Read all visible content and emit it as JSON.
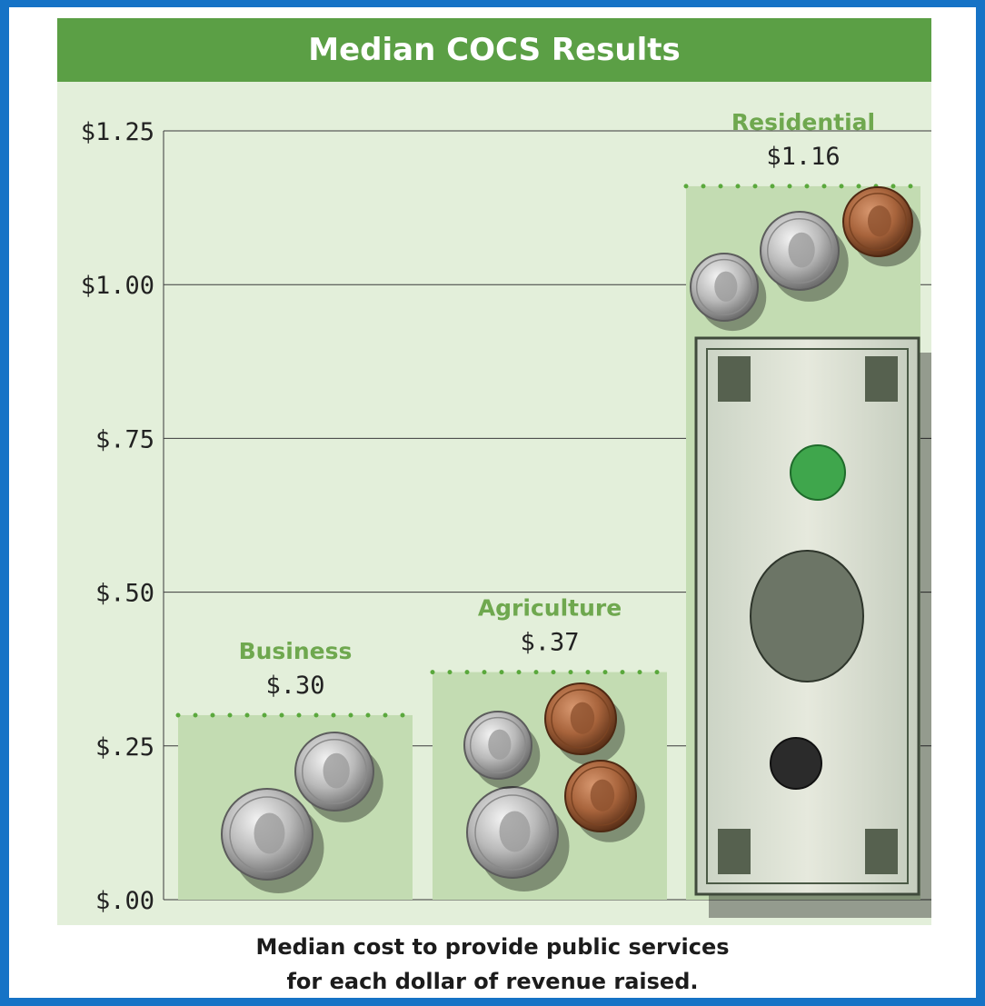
{
  "chart_data": {
    "type": "bar",
    "title": "Median COCS Results",
    "categories": [
      "Business",
      "Agriculture",
      "Residential"
    ],
    "values": [
      0.3,
      0.37,
      1.16
    ],
    "value_labels": [
      "$.30",
      "$.37",
      "$1.16"
    ],
    "ylim": [
      0,
      1.25
    ],
    "yticks": [
      0,
      0.25,
      0.5,
      0.75,
      1.0,
      1.25
    ],
    "ytick_labels": [
      "$.00",
      "$.25",
      "$.50",
      "$.75",
      "$1.00",
      "$1.25"
    ],
    "grid": true,
    "xlabel": "",
    "ylabel": ""
  },
  "caption": {
    "line1": "Median cost to provide public services",
    "line2": "for each dollar of revenue raised."
  },
  "colors": {
    "frame": "#1673c6",
    "title_bar": "#5b9f45",
    "title_text": "#ffffff",
    "plot_bg": "#e3efda",
    "bar_fill": "#c3dcb2",
    "category_text": "#6fa84f",
    "dots": "#5aa83c",
    "grid": "#3a3a3a"
  },
  "icons": {
    "business": [
      "quarter-coin-icon",
      "nickel-coin-icon"
    ],
    "agriculture": [
      "quarter-coin-icon",
      "dime-coin-icon",
      "penny-coin-icon",
      "penny-coin-icon"
    ],
    "residential": [
      "dollar-bill-icon",
      "dime-coin-icon",
      "nickel-coin-icon",
      "penny-coin-icon"
    ]
  }
}
